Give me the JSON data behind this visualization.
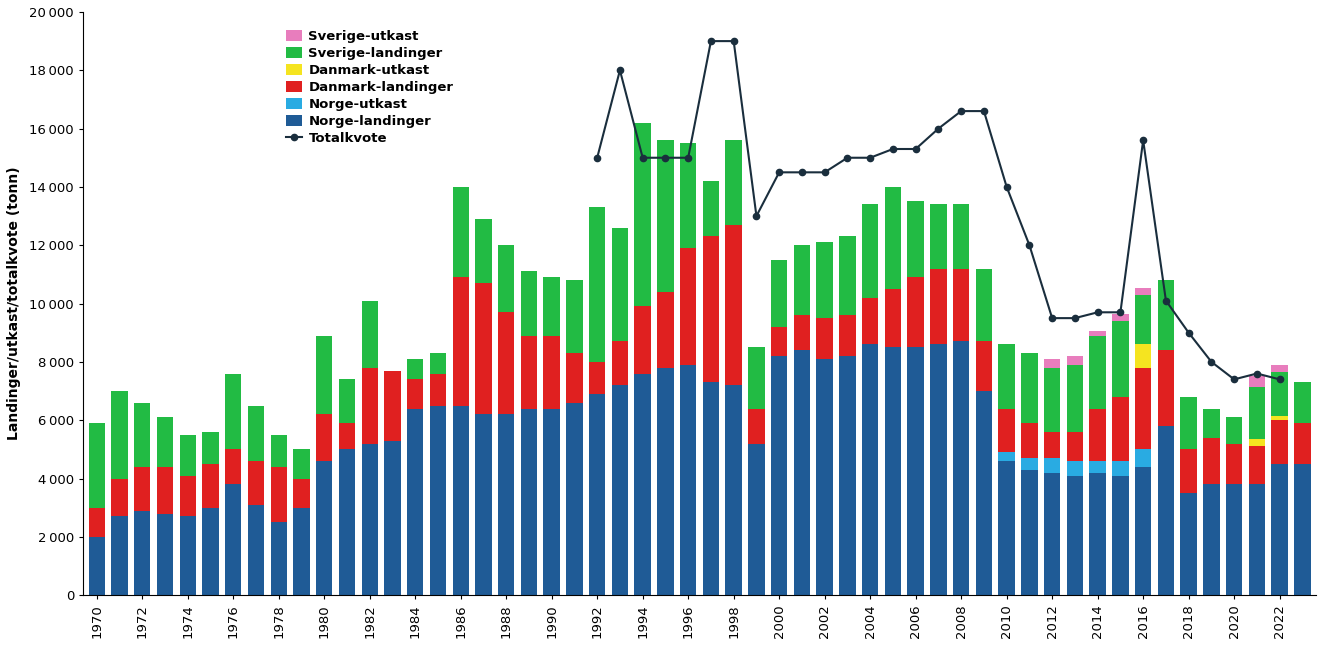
{
  "years": [
    1970,
    1971,
    1972,
    1973,
    1974,
    1975,
    1976,
    1977,
    1978,
    1979,
    1980,
    1981,
    1982,
    1983,
    1984,
    1985,
    1986,
    1987,
    1988,
    1989,
    1990,
    1991,
    1992,
    1993,
    1994,
    1995,
    1996,
    1997,
    1998,
    1999,
    2000,
    2001,
    2002,
    2003,
    2004,
    2005,
    2006,
    2007,
    2008,
    2009,
    2010,
    2011,
    2012,
    2013,
    2014,
    2015,
    2016,
    2017,
    2018,
    2019,
    2020,
    2021,
    2022,
    2023
  ],
  "norge_landinger": [
    2000,
    2700,
    2900,
    2800,
    2700,
    3000,
    3800,
    3100,
    2500,
    3000,
    4600,
    5000,
    5200,
    5300,
    6400,
    6500,
    6500,
    6200,
    6200,
    6400,
    6400,
    6600,
    6900,
    7200,
    7600,
    7800,
    7900,
    7300,
    7200,
    5200,
    8200,
    8400,
    8100,
    8200,
    8600,
    8500,
    8500,
    8600,
    8700,
    7000,
    4600,
    4300,
    4200,
    4100,
    4200,
    4100,
    4400,
    5800,
    3500,
    3800,
    3800,
    3800,
    4500,
    4500
  ],
  "norge_utkast": [
    0,
    0,
    0,
    0,
    0,
    0,
    0,
    0,
    0,
    0,
    0,
    0,
    0,
    0,
    0,
    0,
    0,
    0,
    0,
    0,
    0,
    0,
    0,
    0,
    0,
    0,
    0,
    0,
    0,
    0,
    0,
    0,
    0,
    0,
    0,
    0,
    0,
    0,
    0,
    0,
    300,
    400,
    500,
    500,
    400,
    500,
    600,
    0,
    0,
    0,
    0,
    0,
    0,
    0
  ],
  "danmark_landinger": [
    1000,
    1300,
    1500,
    1600,
    1400,
    1500,
    1200,
    1500,
    1900,
    1000,
    1600,
    900,
    2600,
    2400,
    1000,
    1100,
    4400,
    4500,
    3500,
    2500,
    2500,
    1700,
    1100,
    1500,
    2300,
    2600,
    4000,
    5000,
    5500,
    1200,
    1000,
    1200,
    1400,
    1400,
    1600,
    2000,
    2400,
    2600,
    2500,
    1700,
    1500,
    1200,
    900,
    1000,
    1800,
    2200,
    2800,
    2600,
    1500,
    1600,
    1400,
    1300,
    1500,
    1400
  ],
  "danmark_utkast": [
    0,
    0,
    0,
    0,
    0,
    0,
    0,
    0,
    0,
    0,
    0,
    0,
    0,
    0,
    0,
    0,
    0,
    0,
    0,
    0,
    0,
    0,
    0,
    0,
    0,
    0,
    0,
    0,
    0,
    0,
    0,
    0,
    0,
    0,
    0,
    0,
    0,
    0,
    0,
    0,
    0,
    0,
    0,
    0,
    0,
    0,
    800,
    0,
    0,
    0,
    0,
    250,
    150,
    0
  ],
  "sverige_landinger": [
    2900,
    3000,
    2200,
    1700,
    1400,
    1100,
    2600,
    1900,
    1100,
    1000,
    2700,
    1500,
    2300,
    0,
    700,
    700,
    3100,
    2200,
    2300,
    2200,
    2000,
    2500,
    5300,
    3900,
    6300,
    5200,
    3600,
    1900,
    2900,
    2100,
    2300,
    2400,
    2600,
    2700,
    3200,
    3500,
    2600,
    2200,
    2200,
    2500,
    2200,
    2400,
    2200,
    2300,
    2500,
    2600,
    1700,
    2400,
    1800,
    1000,
    900,
    1800,
    1500,
    1400
  ],
  "sverige_utkast": [
    0,
    0,
    0,
    0,
    0,
    0,
    0,
    0,
    0,
    0,
    0,
    0,
    0,
    0,
    0,
    0,
    0,
    0,
    0,
    0,
    0,
    0,
    0,
    0,
    0,
    0,
    0,
    0,
    0,
    0,
    0,
    0,
    0,
    0,
    0,
    0,
    0,
    0,
    0,
    0,
    0,
    0,
    300,
    300,
    150,
    250,
    250,
    0,
    0,
    0,
    0,
    350,
    250,
    0
  ],
  "totalkvote": [
    0,
    0,
    0,
    0,
    0,
    0,
    0,
    0,
    0,
    0,
    0,
    0,
    0,
    0,
    0,
    0,
    0,
    0,
    0,
    0,
    0,
    0,
    15000,
    18000,
    15000,
    15000,
    15000,
    19000,
    19000,
    13000,
    14500,
    14500,
    14500,
    15000,
    15000,
    15300,
    15300,
    16000,
    16600,
    16600,
    14000,
    12000,
    9500,
    9500,
    9700,
    9700,
    15600,
    10100,
    9000,
    8000,
    7400,
    7600,
    7400,
    0
  ],
  "colors": {
    "norge_landinger": "#1f5b96",
    "norge_utkast": "#29abe2",
    "danmark_landinger": "#e02020",
    "danmark_utkast": "#f5e420",
    "sverige_landinger": "#22bb44",
    "sverige_utkast": "#e87dbd"
  },
  "ylabel": "Landinger/utkast/totalkvote (tonn)",
  "ylim": [
    0,
    20000
  ],
  "yticks": [
    0,
    2000,
    4000,
    6000,
    8000,
    10000,
    12000,
    14000,
    16000,
    18000,
    20000
  ],
  "totalkvote_color": "#1a2e3d",
  "background_color": "#ffffff"
}
